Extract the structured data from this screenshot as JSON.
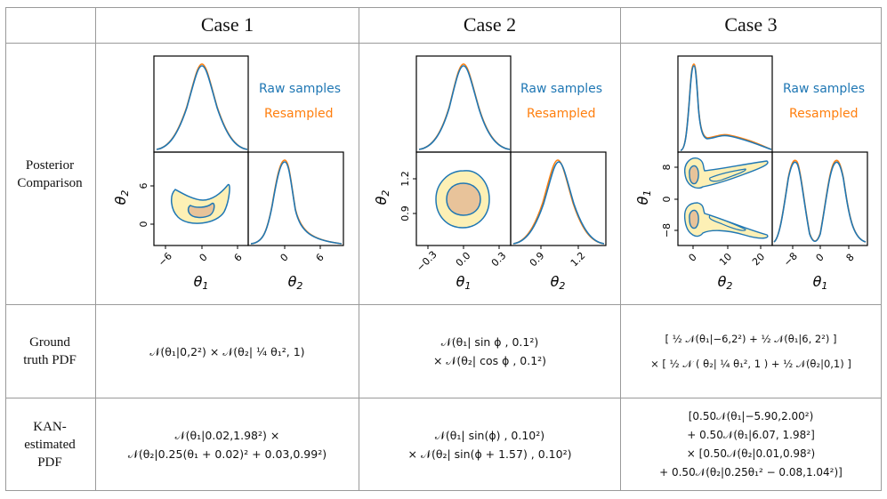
{
  "headers": [
    "Case 1",
    "Case 2",
    "Case 3"
  ],
  "row_labels": {
    "posterior": [
      "Posterior",
      "Comparison"
    ],
    "ground_truth": [
      "Ground",
      "truth PDF"
    ],
    "kan": [
      "KAN-",
      "estimated",
      "PDF"
    ]
  },
  "legend": {
    "raw": "Raw samples",
    "resampled": "Resampled"
  },
  "colors": {
    "raw": "#1f77b4",
    "resampled": "#ff7f0e",
    "fill_outer": "#fdf0b5",
    "fill_inner": "#e8c39a",
    "grid": "#9a9a9a"
  },
  "case1": {
    "xticks_theta1": [
      "−6",
      "0",
      "6"
    ],
    "yticks_theta2": [
      "6",
      "0"
    ],
    "xticks_theta2": [
      "0",
      "6"
    ],
    "xlabel_left": "θ1",
    "xlabel_right": "θ2",
    "ylabel": "θ2"
  },
  "case2": {
    "xticks_theta1": [
      "−0.3",
      "0.0",
      "0.3"
    ],
    "yticks_theta2": [
      "1.2",
      "0.9"
    ],
    "xticks_theta2": [
      "0.9",
      "1.2"
    ],
    "xlabel_left": "θ1",
    "xlabel_right": "θ2",
    "ylabel": "θ2"
  },
  "case3": {
    "xticks_theta2": [
      "0",
      "10",
      "20"
    ],
    "yticks_theta1": [
      "8",
      "0",
      "−8"
    ],
    "xticks_theta1": [
      "−8",
      "0",
      "8"
    ],
    "xlabel_left": "θ2",
    "xlabel_right": "θ1",
    "ylabel": "θ1"
  },
  "ground_truth": {
    "case1": [
      "𝒩(θ₁|0,2²) × 𝒩(θ₂| ¼ θ₁², 1)"
    ],
    "case2": [
      "𝒩(θ₁| sin ϕ , 0.1²)",
      "× 𝒩(θ₂| cos ϕ , 0.1²)"
    ],
    "case3": [
      "[ ½ 𝒩(θ₁|−6,2²) + ½ 𝒩(θ₁|6, 2²) ]",
      "× [ ½ 𝒩 ( θ₂| ¼ θ₁², 1 ) + ½ 𝒩(θ₂|0,1) ]"
    ]
  },
  "kan": {
    "case1": [
      "𝒩(θ₁|0.02,1.98²) ×",
      "𝒩(θ₂|0.25(θ₁ + 0.02)² + 0.03,0.99²)"
    ],
    "case2": [
      "𝒩(θ₁| sin(ϕ) , 0.10²)",
      "× 𝒩(θ₂| sin(ϕ + 1.57) , 0.10²)"
    ],
    "case3": [
      "[0.50𝒩(θ₁|−5.90,2.00²)",
      "+ 0.50𝒩(θ₁|6.07, 1.98²]",
      "× [0.50𝒩(θ₂|0.01,0.98²)",
      "+ 0.50𝒩(θ₂|0.25θ₁² − 0.08,1.04²)]"
    ]
  }
}
